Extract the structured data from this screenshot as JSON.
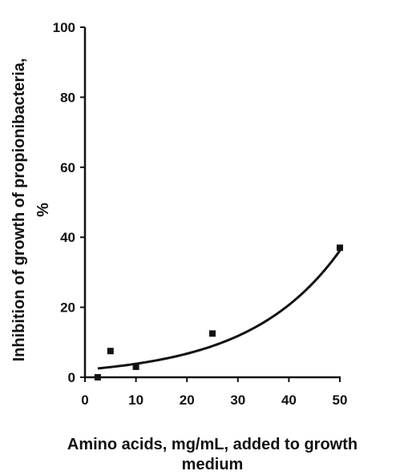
{
  "chart_data": {
    "type": "scatter",
    "title": "",
    "xlabel_lines": [
      "Amino acids, mg/mL, added to growth",
      "medium"
    ],
    "ylabel_lines": [
      "Inhibition of growth of propionibacteria,",
      "%"
    ],
    "xlim": [
      0,
      50
    ],
    "ylim": [
      0,
      100
    ],
    "xticks": [
      0,
      10,
      20,
      30,
      40,
      50
    ],
    "yticks": [
      0,
      20,
      40,
      60,
      80,
      100
    ],
    "grid": false,
    "legend": "none",
    "series": [
      {
        "points": [
          {
            "x": 2.5,
            "y": 0
          },
          {
            "x": 5,
            "y": 7.5
          },
          {
            "x": 10,
            "y": 3
          },
          {
            "x": 25,
            "y": 12.5
          },
          {
            "x": 50,
            "y": 37
          }
        ],
        "marker": "square",
        "color": "#111111"
      }
    ],
    "trendline": {
      "type": "exponential",
      "x_range": [
        2.5,
        50
      ],
      "a": 2.2,
      "b": 0.056,
      "color": "#111111"
    }
  }
}
